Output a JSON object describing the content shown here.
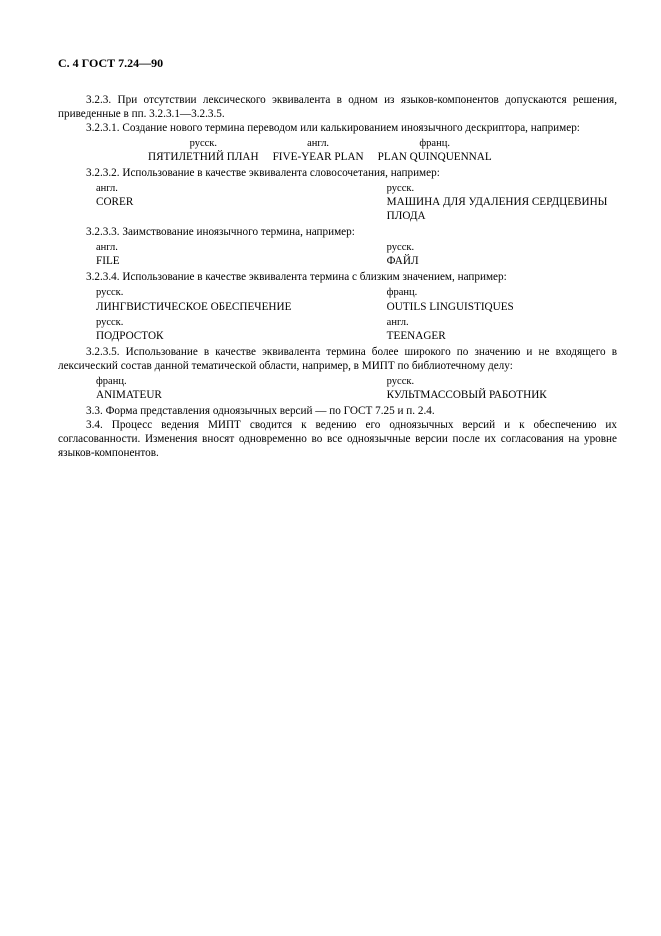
{
  "header": "С. 4 ГОСТ 7.24—90",
  "p_3_2_3": "3.2.3. При отсутствии лексического эквивалента в одном из языков-компонентов допускаются решения, приведенные в пп. 3.2.3.1—3.2.3.5.",
  "p_3_2_3_1": "3.2.3.1. Создание нового термина переводом или калькированием иноязычного дескриптора, например:",
  "ex1": {
    "c1_lang": "русск.",
    "c1_term": "ПЯТИЛЕТНИЙ ПЛАН",
    "c2_lang": "англ.",
    "c2_term": "FIVE-YEAR PLAN",
    "c3_lang": "франц.",
    "c3_term": "PLAN QUINQUENNAL"
  },
  "p_3_2_3_2": "3.2.3.2. Использование в качестве эквивалента словосочетания, например:",
  "ex2": {
    "l_lang": "англ.",
    "l_term": "CORER",
    "r_lang": "русск.",
    "r_term": "МАШИНА ДЛЯ УДАЛЕНИЯ СЕРДЦЕВИНЫ ПЛОДА"
  },
  "p_3_2_3_3": "3.2.3.3. Заимствование иноязычного термина, например:",
  "ex3": {
    "l_lang": "англ.",
    "l_term": "FILE",
    "r_lang": "русск.",
    "r_term": "ФАЙЛ"
  },
  "p_3_2_3_4": "3.2.3.4. Использование в качестве эквивалента термина с близким значением, например:",
  "ex4a": {
    "l_lang": "русск.",
    "l_term": "ЛИНГВИСТИЧЕСКОЕ ОБЕСПЕЧЕНИЕ",
    "r_lang": "франц.",
    "r_term": "OUTILS LINGUISTIQUES"
  },
  "ex4b": {
    "l_lang": "русск.",
    "l_term": "ПОДРОСТОК",
    "r_lang": "англ.",
    "r_term": "TEENAGER"
  },
  "p_3_2_3_5": "3.2.3.5. Использование в качестве эквивалента термина более широкого по значению и не входящего в лексический состав данной тематической области, например, в МИПТ по библиотечному делу:",
  "ex5": {
    "l_lang": "франц.",
    "l_term": "ANIMATEUR",
    "r_lang": "русск.",
    "r_term": "КУЛЬТМАССОВЫЙ РАБОТНИК"
  },
  "p_3_3": "3.3. Форма представления одноязычных версий — по ГОСТ 7.25 и п. 2.4.",
  "p_3_4": "3.4. Процесс ведения МИПТ сводится к ведению его одноязычных версий и к обеспечению их согласованности. Изменения вносят одновременно во все одноязычные версии после их согласования на уровне языков-компонентов."
}
